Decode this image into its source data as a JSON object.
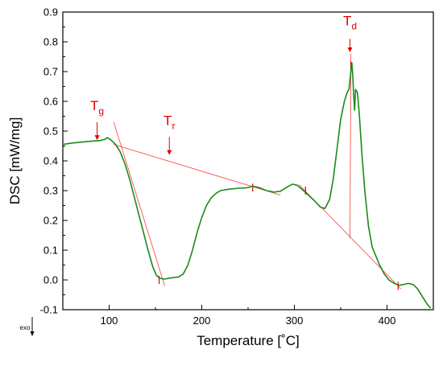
{
  "chart_data": {
    "type": "line",
    "xlabel": "Temperature [˚C]",
    "ylabel": "DSC [mW/mg]",
    "xlim": [
      50,
      450
    ],
    "ylim": [
      -0.1,
      0.9
    ],
    "x_ticks": [
      100,
      200,
      300,
      400
    ],
    "y_ticks": [
      -0.1,
      0.0,
      0.1,
      0.2,
      0.3,
      0.4,
      0.5,
      0.6,
      0.7,
      0.8,
      0.9
    ],
    "y_tick_labels": [
      "-0.1",
      "0.0",
      "0.1",
      "0.2",
      "0.3",
      "0.4",
      "0.5",
      "0.6",
      "0.7",
      "0.8",
      "0.9"
    ],
    "grid": false,
    "series": [
      {
        "color": "#1a8a1a",
        "points": [
          [
            50,
            0.455
          ],
          [
            60,
            0.46
          ],
          [
            70,
            0.463
          ],
          [
            80,
            0.466
          ],
          [
            90,
            0.468
          ],
          [
            95,
            0.472
          ],
          [
            98,
            0.478
          ],
          [
            102,
            0.47
          ],
          [
            107,
            0.455
          ],
          [
            112,
            0.43
          ],
          [
            117,
            0.39
          ],
          [
            122,
            0.34
          ],
          [
            127,
            0.28
          ],
          [
            132,
            0.22
          ],
          [
            137,
            0.16
          ],
          [
            142,
            0.1
          ],
          [
            147,
            0.045
          ],
          [
            151,
            0.015
          ],
          [
            155,
            0.005
          ],
          [
            160,
            0.003
          ],
          [
            165,
            0.006
          ],
          [
            170,
            0.008
          ],
          [
            175,
            0.01
          ],
          [
            180,
            0.02
          ],
          [
            185,
            0.05
          ],
          [
            190,
            0.1
          ],
          [
            195,
            0.16
          ],
          [
            200,
            0.21
          ],
          [
            205,
            0.25
          ],
          [
            210,
            0.275
          ],
          [
            215,
            0.29
          ],
          [
            220,
            0.3
          ],
          [
            230,
            0.305
          ],
          [
            240,
            0.308
          ],
          [
            250,
            0.31
          ],
          [
            255,
            0.315
          ],
          [
            262,
            0.31
          ],
          [
            270,
            0.3
          ],
          [
            278,
            0.295
          ],
          [
            285,
            0.298
          ],
          [
            292,
            0.312
          ],
          [
            298,
            0.322
          ],
          [
            303,
            0.318
          ],
          [
            308,
            0.305
          ],
          [
            315,
            0.285
          ],
          [
            322,
            0.265
          ],
          [
            328,
            0.245
          ],
          [
            333,
            0.24
          ],
          [
            338,
            0.27
          ],
          [
            342,
            0.34
          ],
          [
            346,
            0.44
          ],
          [
            350,
            0.54
          ],
          [
            354,
            0.6
          ],
          [
            357,
            0.63
          ],
          [
            359,
            0.64
          ],
          [
            361,
            0.7
          ],
          [
            362,
            0.73
          ],
          [
            363,
            0.69
          ],
          [
            364,
            0.62
          ],
          [
            365,
            0.57
          ],
          [
            366,
            0.64
          ],
          [
            368,
            0.63
          ],
          [
            370,
            0.56
          ],
          [
            373,
            0.42
          ],
          [
            376,
            0.3
          ],
          [
            380,
            0.18
          ],
          [
            384,
            0.11
          ],
          [
            388,
            0.08
          ],
          [
            392,
            0.05
          ],
          [
            397,
            0.02
          ],
          [
            402,
            0.0
          ],
          [
            408,
            -0.012
          ],
          [
            413,
            -0.018
          ],
          [
            418,
            -0.015
          ],
          [
            423,
            -0.012
          ],
          [
            428,
            -0.015
          ],
          [
            433,
            -0.03
          ],
          [
            438,
            -0.055
          ],
          [
            443,
            -0.08
          ],
          [
            447,
            -0.095
          ]
        ]
      }
    ],
    "construction_lines": [
      {
        "name": "tg-tangent",
        "points": [
          [
            105,
            0.53
          ],
          [
            160,
            -0.02
          ]
        ]
      },
      {
        "name": "baseline-left",
        "points": [
          [
            105,
            0.455
          ],
          [
            285,
            0.285
          ]
        ]
      },
      {
        "name": "baseline-right",
        "points": [
          [
            305,
            0.32
          ],
          [
            415,
            -0.03
          ]
        ]
      },
      {
        "name": "td-drop",
        "points": [
          [
            360,
            0.14
          ],
          [
            361,
            0.76
          ]
        ]
      }
    ],
    "tick_marks": [
      [
        154,
        0.0
      ],
      [
        255,
        0.31
      ],
      [
        312,
        0.3
      ],
      [
        412,
        -0.02
      ],
      [
        361,
        0.72
      ]
    ],
    "annotations": [
      {
        "name": "tg",
        "text": "T",
        "sub": "g",
        "x": 87,
        "y": 0.57,
        "arrow_from": 0.53,
        "arrow_to": 0.47
      },
      {
        "name": "tr",
        "text": "T",
        "sub": "r",
        "x": 165,
        "y": 0.52,
        "arrow_from": 0.48,
        "arrow_to": 0.42
      },
      {
        "name": "td",
        "text": "T",
        "sub": "d",
        "x": 360,
        "y": 0.855,
        "arrow_from": 0.81,
        "arrow_to": 0.765
      }
    ],
    "exo_label": "exo"
  }
}
